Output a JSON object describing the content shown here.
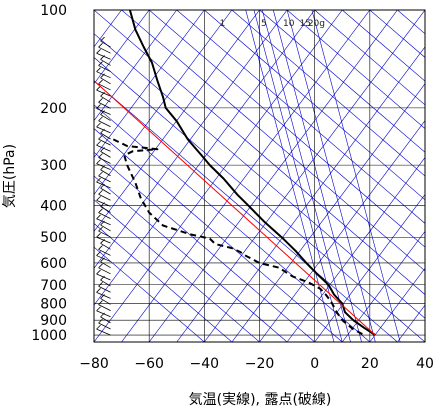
{
  "chart_data": {
    "type": "line",
    "title": "",
    "xlabel": "気温(実線), 露点(破線)",
    "ylabel": "気圧(hPa)",
    "xlim": [
      -80,
      40
    ],
    "ylim": [
      1050,
      100
    ],
    "y_scale": "log",
    "xticks": [
      -80,
      -60,
      -40,
      -20,
      0,
      20,
      40
    ],
    "xtick_labels": [
      "−80",
      "−60",
      "−40",
      "−20",
      "0",
      "20",
      "40"
    ],
    "yticks": [
      100,
      200,
      300,
      400,
      500,
      600,
      700,
      800,
      900,
      1000
    ],
    "ytick_labels": [
      "100",
      "200",
      "300",
      "400",
      "500",
      "600",
      "700",
      "800",
      "900",
      "1000"
    ],
    "mixing_ratio_labels": [
      "1",
      "5",
      "10",
      "15",
      "20g"
    ],
    "grid": true,
    "series": [
      {
        "style": "solid",
        "color": "#000000",
        "points": [
          {
            "p": 100,
            "t": -67
          },
          {
            "p": 115,
            "t": -65
          },
          {
            "p": 130,
            "t": -62
          },
          {
            "p": 145,
            "t": -59
          },
          {
            "p": 165,
            "t": -57
          },
          {
            "p": 185,
            "t": -55
          },
          {
            "p": 200,
            "t": -54
          },
          {
            "p": 220,
            "t": -50
          },
          {
            "p": 250,
            "t": -46
          },
          {
            "p": 280,
            "t": -41
          },
          {
            "p": 300,
            "t": -38
          },
          {
            "p": 330,
            "t": -33
          },
          {
            "p": 370,
            "t": -28
          },
          {
            "p": 400,
            "t": -24
          },
          {
            "p": 450,
            "t": -18
          },
          {
            "p": 500,
            "t": -12
          },
          {
            "p": 550,
            "t": -7
          },
          {
            "p": 600,
            "t": -3
          },
          {
            "p": 650,
            "t": 1
          },
          {
            "p": 700,
            "t": 5
          },
          {
            "p": 750,
            "t": 7
          },
          {
            "p": 800,
            "t": 10
          },
          {
            "p": 850,
            "t": 11
          },
          {
            "p": 900,
            "t": 14
          },
          {
            "p": 950,
            "t": 18
          },
          {
            "p": 1000,
            "t": 22
          }
        ]
      },
      {
        "style": "dashed",
        "color": "#000000",
        "points": [
          {
            "p": 250,
            "t": -73
          },
          {
            "p": 262,
            "t": -68
          },
          {
            "p": 268,
            "t": -57
          },
          {
            "p": 272,
            "t": -66
          },
          {
            "p": 280,
            "t": -69
          },
          {
            "p": 300,
            "t": -68
          },
          {
            "p": 340,
            "t": -65
          },
          {
            "p": 380,
            "t": -63
          },
          {
            "p": 420,
            "t": -60
          },
          {
            "p": 460,
            "t": -55
          },
          {
            "p": 490,
            "t": -45
          },
          {
            "p": 505,
            "t": -38
          },
          {
            "p": 525,
            "t": -36
          },
          {
            "p": 540,
            "t": -30
          },
          {
            "p": 555,
            "t": -27
          },
          {
            "p": 570,
            "t": -25
          },
          {
            "p": 600,
            "t": -20
          },
          {
            "p": 620,
            "t": -13
          },
          {
            "p": 660,
            "t": -8
          },
          {
            "p": 690,
            "t": -2
          },
          {
            "p": 720,
            "t": 2
          },
          {
            "p": 750,
            "t": 4
          },
          {
            "p": 790,
            "t": 6
          },
          {
            "p": 850,
            "t": 8
          },
          {
            "p": 900,
            "t": 10
          },
          {
            "p": 960,
            "t": 14
          },
          {
            "p": 1000,
            "t": 18
          }
        ]
      },
      {
        "style": "solid",
        "color": "#ff0000",
        "points": [
          {
            "p": 165,
            "t": -80
          },
          {
            "p": 1000,
            "t": 22
          }
        ]
      }
    ],
    "wind_barbs": {
      "t": -74,
      "pressures_top": 130,
      "pressures_bottom": 1000,
      "count": 48
    },
    "background_lines_color": "#0000cc",
    "grid_color": "#000000"
  }
}
